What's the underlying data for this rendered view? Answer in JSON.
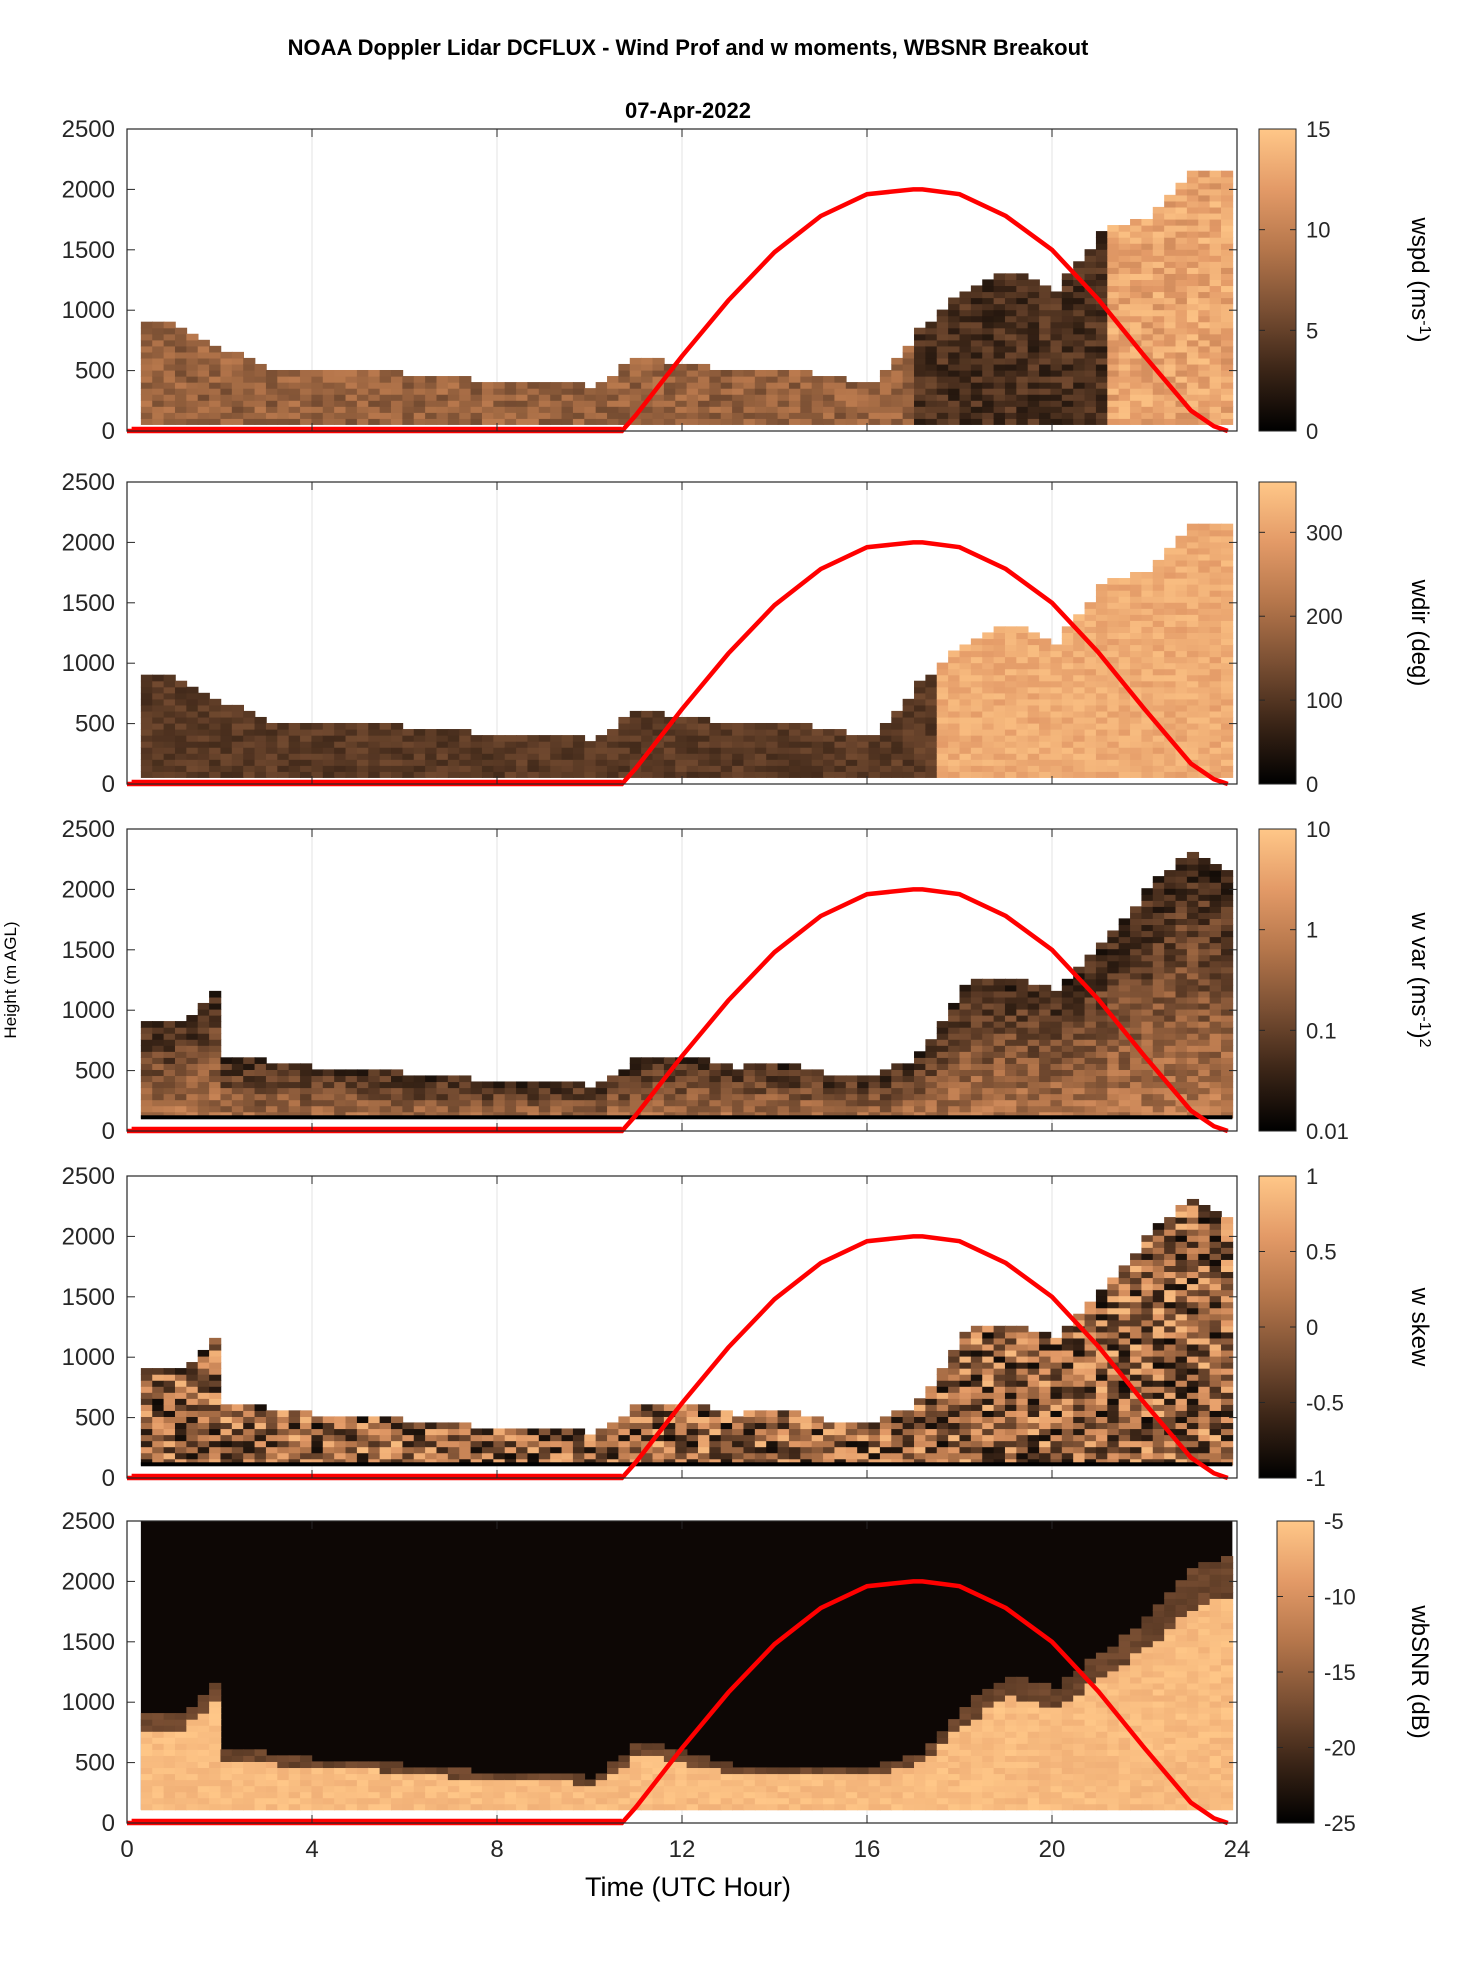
{
  "figure": {
    "title": "NOAA Doppler Lidar DCFLUX - Wind Prof and w moments, WBSNR Breakout",
    "date": "07-Apr-2022",
    "ylabel": "Height (m AGL)",
    "xlabel": "Time (UTC Hour)"
  },
  "colors": {
    "background": "#ffffff",
    "axis": "#262626",
    "grid": "#e3e3e3",
    "solar_curve": "#ff0000",
    "colormap": [
      "#000000",
      "#3b2517",
      "#7a4f33",
      "#b5764b",
      "#e39a67",
      "#ffc788"
    ]
  },
  "chart_data": {
    "type": "heatmap",
    "x_ticks": [
      0,
      4,
      8,
      12,
      16,
      20,
      24
    ],
    "xlim": [
      0,
      24
    ],
    "y_ticks": [
      0,
      500,
      1000,
      1500,
      2000,
      2500
    ],
    "ylim": [
      0,
      2500
    ],
    "grid": true,
    "solar_elevation_overlay": {
      "series_color": "#ff0000",
      "x": [
        0,
        10.7,
        11,
        12,
        13,
        14,
        15,
        16,
        17,
        17.2,
        18,
        19,
        20,
        21,
        22,
        23,
        23.5,
        23.8
      ],
      "y": [
        0,
        0,
        130,
        620,
        1080,
        1480,
        1780,
        1960,
        2000,
        2000,
        1960,
        1780,
        1500,
        1090,
        620,
        170,
        40,
        0
      ]
    },
    "panels": [
      {
        "name": "wspd",
        "colorbar_label_base": "wspd (ms",
        "colorbar_label_sup": "-1",
        "colorbar_label_end": ")",
        "colorbar_ticks": [
          "15",
          "10",
          "5",
          "0"
        ],
        "colorbar_range": [
          0,
          15
        ],
        "colorbar_scale": "linear",
        "approx_data_top_m": [
          [
            0,
            900
          ],
          [
            1,
            850
          ],
          [
            2,
            650
          ],
          [
            3,
            500
          ],
          [
            4,
            500
          ],
          [
            5,
            500
          ],
          [
            6,
            450
          ],
          [
            7,
            420
          ],
          [
            8,
            380
          ],
          [
            9,
            380
          ],
          [
            10,
            350
          ],
          [
            11,
            600
          ],
          [
            12,
            520
          ],
          [
            13,
            480
          ],
          [
            14,
            500
          ],
          [
            15,
            430
          ],
          [
            16,
            380
          ],
          [
            17,
            800
          ],
          [
            18,
            1150
          ],
          [
            19,
            1300
          ],
          [
            20,
            1150
          ],
          [
            21,
            1650
          ],
          [
            22,
            1750
          ],
          [
            23,
            2150
          ],
          [
            24,
            2150
          ]
        ]
      },
      {
        "name": "wdir",
        "colorbar_label_base": "wdir (deg)",
        "colorbar_label_sup": "",
        "colorbar_label_end": "",
        "colorbar_ticks": [
          "300",
          "200",
          "100",
          "0"
        ],
        "colorbar_range": [
          0,
          360
        ],
        "colorbar_scale": "linear",
        "approx_data_top_m": [
          [
            0,
            900
          ],
          [
            1,
            850
          ],
          [
            2,
            650
          ],
          [
            3,
            500
          ],
          [
            4,
            500
          ],
          [
            5,
            500
          ],
          [
            6,
            450
          ],
          [
            7,
            420
          ],
          [
            8,
            380
          ],
          [
            9,
            380
          ],
          [
            10,
            350
          ],
          [
            11,
            600
          ],
          [
            12,
            520
          ],
          [
            13,
            480
          ],
          [
            14,
            500
          ],
          [
            15,
            430
          ],
          [
            16,
            380
          ],
          [
            17,
            800
          ],
          [
            18,
            1150
          ],
          [
            19,
            1300
          ],
          [
            20,
            1150
          ],
          [
            21,
            1650
          ],
          [
            22,
            1750
          ],
          [
            23,
            2150
          ],
          [
            24,
            2150
          ]
        ]
      },
      {
        "name": "w var",
        "colorbar_label_base": "w var (ms",
        "colorbar_label_sup": "-1",
        "colorbar_label_end": ")",
        "colorbar_label_sup2": "2",
        "colorbar_ticks": [
          "10",
          "1",
          "0.1",
          "0.01"
        ],
        "colorbar_range": [
          0.01,
          10
        ],
        "colorbar_scale": "log",
        "approx_data_top_m": [
          [
            0,
            900
          ],
          [
            1,
            850
          ],
          [
            1.8,
            1150
          ],
          [
            2,
            600
          ],
          [
            3,
            550
          ],
          [
            4,
            500
          ],
          [
            5,
            500
          ],
          [
            6,
            450
          ],
          [
            7,
            420
          ],
          [
            8,
            380
          ],
          [
            9,
            380
          ],
          [
            10,
            350
          ],
          [
            11,
            600
          ],
          [
            12,
            600
          ],
          [
            13,
            500
          ],
          [
            14,
            550
          ],
          [
            15,
            450
          ],
          [
            16,
            420
          ],
          [
            17,
            600
          ],
          [
            18,
            1200
          ],
          [
            19,
            1250
          ],
          [
            20,
            1150
          ],
          [
            21,
            1550
          ],
          [
            22,
            2000
          ],
          [
            22.8,
            2300
          ],
          [
            23.5,
            2150
          ],
          [
            24,
            2150
          ]
        ]
      },
      {
        "name": "w skew",
        "colorbar_label_base": "w skew",
        "colorbar_label_sup": "",
        "colorbar_label_end": "",
        "colorbar_ticks": [
          "1",
          "0.5",
          "0",
          "-0.5",
          "-1"
        ],
        "colorbar_range": [
          -1,
          1
        ],
        "colorbar_scale": "linear",
        "approx_data_top_m": [
          [
            0,
            900
          ],
          [
            1,
            850
          ],
          [
            1.8,
            1150
          ],
          [
            2,
            600
          ],
          [
            3,
            550
          ],
          [
            4,
            500
          ],
          [
            5,
            500
          ],
          [
            6,
            450
          ],
          [
            7,
            420
          ],
          [
            8,
            380
          ],
          [
            9,
            380
          ],
          [
            10,
            350
          ],
          [
            11,
            600
          ],
          [
            12,
            600
          ],
          [
            13,
            500
          ],
          [
            14,
            550
          ],
          [
            15,
            450
          ],
          [
            16,
            420
          ],
          [
            17,
            600
          ],
          [
            18,
            1200
          ],
          [
            19,
            1250
          ],
          [
            20,
            1150
          ],
          [
            21,
            1550
          ],
          [
            22,
            2000
          ],
          [
            22.8,
            2300
          ],
          [
            23.5,
            2150
          ],
          [
            24,
            2150
          ]
        ]
      },
      {
        "name": "wbSNR",
        "colorbar_label_base": "wbSNR (dB)",
        "colorbar_label_sup": "",
        "colorbar_label_end": "",
        "colorbar_ticks": [
          "-5",
          "-10",
          "-15",
          "-20",
          "-25"
        ],
        "colorbar_range": [
          -25,
          -5
        ],
        "colorbar_scale": "linear",
        "approx_data_top_m": [
          [
            0,
            900
          ],
          [
            1,
            850
          ],
          [
            1.8,
            1150
          ],
          [
            2,
            600
          ],
          [
            3,
            550
          ],
          [
            4,
            500
          ],
          [
            5,
            500
          ],
          [
            6,
            450
          ],
          [
            7,
            420
          ],
          [
            8,
            380
          ],
          [
            9,
            380
          ],
          [
            10,
            350
          ],
          [
            11,
            650
          ],
          [
            12,
            550
          ],
          [
            13,
            450
          ],
          [
            14,
            450
          ],
          [
            15,
            450
          ],
          [
            16,
            450
          ],
          [
            17,
            550
          ],
          [
            18,
            950
          ],
          [
            19,
            1200
          ],
          [
            20,
            1100
          ],
          [
            21,
            1400
          ],
          [
            22,
            1700
          ],
          [
            23,
            2100
          ],
          [
            24,
            2200
          ]
        ]
      }
    ]
  }
}
